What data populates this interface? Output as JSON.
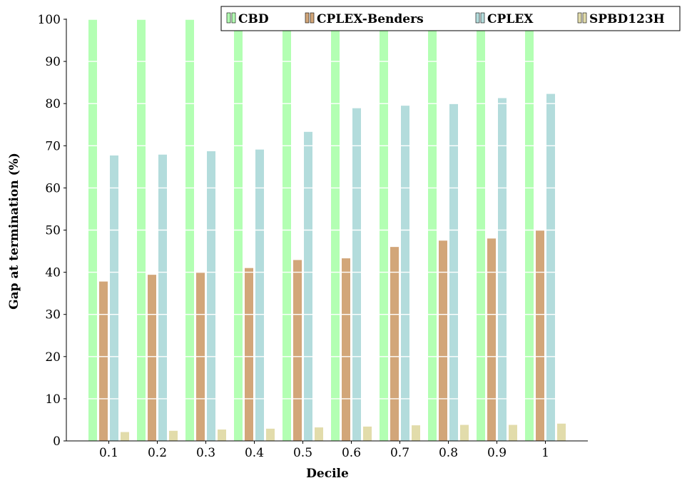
{
  "chart_data": {
    "type": "bar",
    "xlabel": "Decile",
    "ylabel": "Gap at termination (%)",
    "ylim": [
      0,
      100
    ],
    "yticks": [
      0,
      10,
      20,
      30,
      40,
      50,
      60,
      70,
      80,
      90,
      100
    ],
    "categories": [
      "0.1",
      "0.2",
      "0.3",
      "0.4",
      "0.5",
      "0.6",
      "0.7",
      "0.8",
      "0.9",
      "1"
    ],
    "legend_position": "top-right",
    "grid": "horizontal white gridlines",
    "series": [
      {
        "name": "CBD",
        "color": "#b3ffb3",
        "values": [
          100,
          100,
          100,
          100,
          100,
          100,
          100,
          100,
          100,
          100
        ]
      },
      {
        "name": "CPLEX-Benders",
        "color": "#d2a679",
        "values": [
          37.8,
          39.4,
          39.9,
          41.0,
          42.9,
          43.3,
          46.0,
          47.5,
          48.0,
          50.0
        ]
      },
      {
        "name": "CPLEX",
        "color": "#b3dcdc",
        "values": [
          67.7,
          67.9,
          68.7,
          69.1,
          73.3,
          78.9,
          79.5,
          80.0,
          81.3,
          82.3
        ]
      },
      {
        "name": "SPBD123H",
        "color": "#e2dcab",
        "values": [
          2.1,
          2.4,
          2.7,
          2.9,
          3.2,
          3.4,
          3.7,
          3.8,
          3.8,
          4.1
        ]
      }
    ]
  }
}
